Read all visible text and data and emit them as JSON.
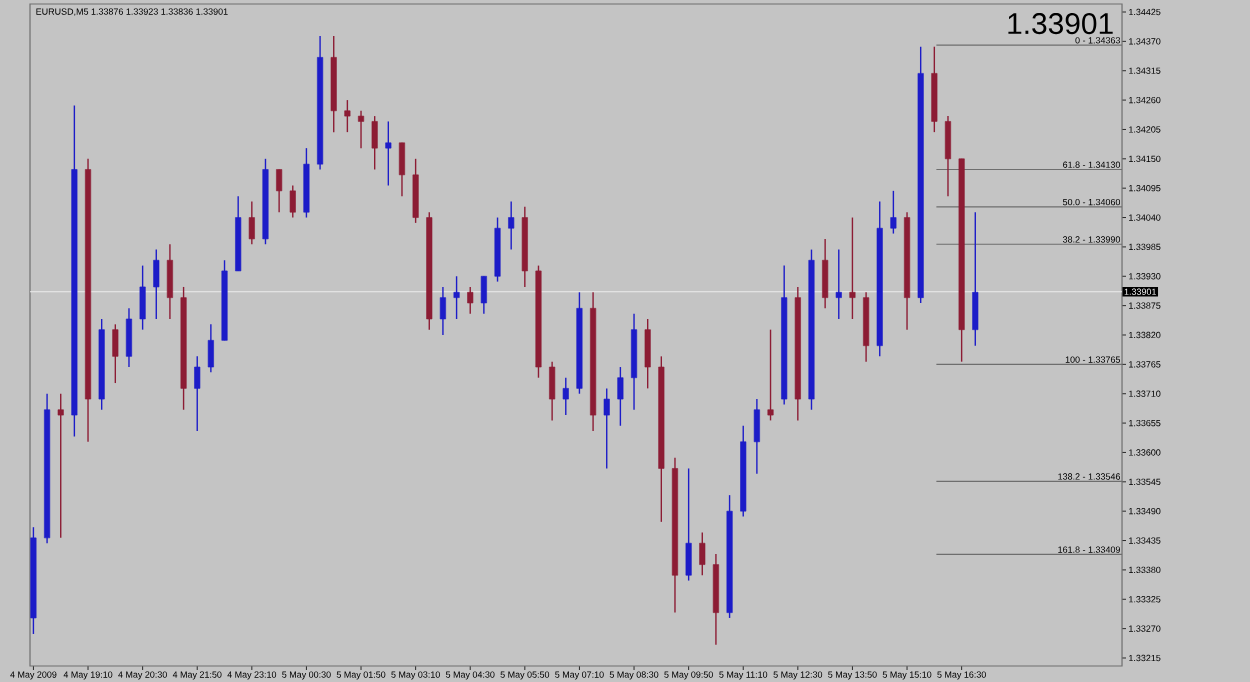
{
  "chart_data": {
    "type": "candlestick",
    "title": "EURUSD,M5 1.33876 1.33923 1.33836 1.33901",
    "x": [
      "2009-05-04T17:50",
      "2009-05-04T18:10",
      "2009-05-04T18:30",
      "2009-05-04T18:50",
      "2009-05-04T19:10",
      "2009-05-04T19:30",
      "2009-05-04T19:50",
      "2009-05-04T20:10",
      "2009-05-04T20:30",
      "2009-05-04T20:50",
      "2009-05-04T21:10",
      "2009-05-04T21:30",
      "2009-05-04T21:50",
      "2009-05-04T22:10",
      "2009-05-04T22:30",
      "2009-05-04T22:50",
      "2009-05-04T23:10",
      "2009-05-04T23:30",
      "2009-05-04T23:50",
      "2009-05-05T00:10",
      "2009-05-05T00:30",
      "2009-05-05T00:50",
      "2009-05-05T01:10",
      "2009-05-05T01:30",
      "2009-05-05T01:50",
      "2009-05-05T02:10",
      "2009-05-05T02:30",
      "2009-05-05T02:50",
      "2009-05-05T03:10",
      "2009-05-05T03:30",
      "2009-05-05T03:50",
      "2009-05-05T04:10",
      "2009-05-05T04:30",
      "2009-05-05T04:50",
      "2009-05-05T05:10",
      "2009-05-05T05:30",
      "2009-05-05T05:50",
      "2009-05-05T06:10",
      "2009-05-05T06:30",
      "2009-05-05T06:50",
      "2009-05-05T07:10",
      "2009-05-05T07:30",
      "2009-05-05T07:50",
      "2009-05-05T08:10",
      "2009-05-05T08:30",
      "2009-05-05T08:50",
      "2009-05-05T09:10",
      "2009-05-05T09:30",
      "2009-05-05T09:50",
      "2009-05-05T10:10",
      "2009-05-05T10:30",
      "2009-05-05T10:50",
      "2009-05-05T11:10",
      "2009-05-05T11:30",
      "2009-05-05T11:50",
      "2009-05-05T12:10",
      "2009-05-05T12:30",
      "2009-05-05T12:50",
      "2009-05-05T13:10",
      "2009-05-05T13:30",
      "2009-05-05T13:50",
      "2009-05-05T14:10",
      "2009-05-05T14:30",
      "2009-05-05T14:50",
      "2009-05-05T15:10",
      "2009-05-05T15:30",
      "2009-05-05T15:50",
      "2009-05-05T16:10",
      "2009-05-05T16:30",
      "2009-05-05T16:50"
    ],
    "ohlc": [
      [
        1.3329,
        1.3346,
        1.3326,
        1.3344
      ],
      [
        1.3344,
        1.3371,
        1.3343,
        1.3368
      ],
      [
        1.3368,
        1.3371,
        1.3344,
        1.3367
      ],
      [
        1.3367,
        1.3425,
        1.3363,
        1.3413
      ],
      [
        1.3413,
        1.3415,
        1.3362,
        1.337
      ],
      [
        1.337,
        1.3385,
        1.3368,
        1.3383
      ],
      [
        1.3383,
        1.3384,
        1.3373,
        1.3378
      ],
      [
        1.3378,
        1.3387,
        1.3376,
        1.3385
      ],
      [
        1.3385,
        1.3395,
        1.3383,
        1.3391
      ],
      [
        1.3391,
        1.3398,
        1.3385,
        1.3396
      ],
      [
        1.3396,
        1.3399,
        1.3385,
        1.3389
      ],
      [
        1.3389,
        1.3391,
        1.3368,
        1.3372
      ],
      [
        1.3372,
        1.3378,
        1.3364,
        1.3376
      ],
      [
        1.3376,
        1.3384,
        1.3375,
        1.3381
      ],
      [
        1.3381,
        1.3396,
        1.3381,
        1.3394
      ],
      [
        1.3394,
        1.3408,
        1.3394,
        1.3404
      ],
      [
        1.3404,
        1.3407,
        1.3399,
        1.34
      ],
      [
        1.34,
        1.3415,
        1.3399,
        1.3413
      ],
      [
        1.3413,
        1.3413,
        1.3405,
        1.3409
      ],
      [
        1.3409,
        1.341,
        1.3404,
        1.3405
      ],
      [
        1.3405,
        1.3417,
        1.3404,
        1.3414
      ],
      [
        1.3414,
        1.3438,
        1.3413,
        1.3434
      ],
      [
        1.3434,
        1.3438,
        1.342,
        1.3424
      ],
      [
        1.3424,
        1.3426,
        1.342,
        1.3423
      ],
      [
        1.3423,
        1.3424,
        1.3417,
        1.3422
      ],
      [
        1.3422,
        1.3423,
        1.3413,
        1.3417
      ],
      [
        1.3417,
        1.3422,
        1.341,
        1.3418
      ],
      [
        1.3418,
        1.3418,
        1.3408,
        1.3412
      ],
      [
        1.3412,
        1.3415,
        1.3403,
        1.3404
      ],
      [
        1.3404,
        1.3405,
        1.3383,
        1.3385
      ],
      [
        1.3385,
        1.3391,
        1.3382,
        1.3389
      ],
      [
        1.3389,
        1.3393,
        1.3385,
        1.339
      ],
      [
        1.339,
        1.3391,
        1.3386,
        1.3388
      ],
      [
        1.3388,
        1.3393,
        1.3386,
        1.3393
      ],
      [
        1.3393,
        1.3404,
        1.3392,
        1.3402
      ],
      [
        1.3402,
        1.3407,
        1.3398,
        1.3404
      ],
      [
        1.3404,
        1.3406,
        1.3391,
        1.3394
      ],
      [
        1.3394,
        1.3395,
        1.3374,
        1.3376
      ],
      [
        1.3376,
        1.3377,
        1.3366,
        1.337
      ],
      [
        1.337,
        1.3374,
        1.3367,
        1.3372
      ],
      [
        1.3372,
        1.339,
        1.3371,
        1.3387
      ],
      [
        1.3387,
        1.339,
        1.3364,
        1.3367
      ],
      [
        1.3367,
        1.3372,
        1.3357,
        1.337
      ],
      [
        1.337,
        1.3376,
        1.3365,
        1.3374
      ],
      [
        1.3374,
        1.3386,
        1.3368,
        1.3383
      ],
      [
        1.3383,
        1.3385,
        1.3372,
        1.3376
      ],
      [
        1.3376,
        1.3378,
        1.3347,
        1.3357
      ],
      [
        1.3357,
        1.3359,
        1.333,
        1.3337
      ],
      [
        1.3337,
        1.3357,
        1.3336,
        1.3343
      ],
      [
        1.3343,
        1.3345,
        1.3337,
        1.3339
      ],
      [
        1.3339,
        1.3341,
        1.3324,
        1.333
      ],
      [
        1.333,
        1.3352,
        1.3329,
        1.3349
      ],
      [
        1.3349,
        1.3365,
        1.3348,
        1.3362
      ],
      [
        1.3362,
        1.337,
        1.3356,
        1.3368
      ],
      [
        1.3368,
        1.3383,
        1.3366,
        1.3367
      ],
      [
        1.337,
        1.3395,
        1.3369,
        1.3389
      ],
      [
        1.3389,
        1.3391,
        1.3366,
        1.337
      ],
      [
        1.337,
        1.3398,
        1.3368,
        1.3396
      ],
      [
        1.3396,
        1.34,
        1.3387,
        1.3389
      ],
      [
        1.3389,
        1.3398,
        1.3385,
        1.339
      ],
      [
        1.339,
        1.3404,
        1.3385,
        1.3389
      ],
      [
        1.3389,
        1.339,
        1.3377,
        1.338
      ],
      [
        1.338,
        1.3407,
        1.3378,
        1.3402
      ],
      [
        1.3402,
        1.3409,
        1.3401,
        1.3404
      ],
      [
        1.3404,
        1.3405,
        1.3383,
        1.3389
      ],
      [
        1.3389,
        1.3436,
        1.3388,
        1.3431
      ],
      [
        1.3431,
        1.3436,
        1.342,
        1.3422
      ],
      [
        1.3422,
        1.3423,
        1.3408,
        1.3415
      ],
      [
        1.3415,
        1.3415,
        1.3377,
        1.3383
      ],
      [
        1.3383,
        1.3405,
        1.338,
        1.339
      ]
    ],
    "colors": [
      "#1c1cc8",
      "#1c1cc8",
      "#8c1c34",
      "#1c1cc8",
      "#8c1c34",
      "#1c1cc8",
      "#8c1c34",
      "#1c1cc8",
      "#1c1cc8",
      "#1c1cc8",
      "#8c1c34",
      "#8c1c34",
      "#1c1cc8",
      "#1c1cc8",
      "#1c1cc8",
      "#1c1cc8",
      "#8c1c34",
      "#1c1cc8",
      "#8c1c34",
      "#8c1c34",
      "#1c1cc8",
      "#1c1cc8",
      "#8c1c34",
      "#8c1c34",
      "#8c1c34",
      "#8c1c34",
      "#1c1cc8",
      "#8c1c34",
      "#8c1c34",
      "#8c1c34",
      "#1c1cc8",
      "#1c1cc8",
      "#8c1c34",
      "#1c1cc8",
      "#1c1cc8",
      "#1c1cc8",
      "#8c1c34",
      "#8c1c34",
      "#8c1c34",
      "#1c1cc8",
      "#1c1cc8",
      "#8c1c34",
      "#1c1cc8",
      "#1c1cc8",
      "#1c1cc8",
      "#8c1c34",
      "#8c1c34",
      "#8c1c34",
      "#1c1cc8",
      "#8c1c34",
      "#8c1c34",
      "#1c1cc8",
      "#1c1cc8",
      "#1c1cc8",
      "#8c1c34",
      "#1c1cc8",
      "#8c1c34",
      "#1c1cc8",
      "#8c1c34",
      "#1c1cc8",
      "#8c1c34",
      "#8c1c34",
      "#1c1cc8",
      "#1c1cc8",
      "#8c1c34",
      "#1c1cc8",
      "#8c1c34",
      "#8c1c34",
      "#8c1c34",
      "#1c1cc8"
    ],
    "xlim": [
      "2009-05-04T17:45",
      "2009-05-05T20:25"
    ],
    "xticks": [
      {
        "value": "2009-05-04T17:50",
        "label": "4 May 2009"
      },
      {
        "value": "2009-05-04T19:10",
        "label": "4 May 19:10"
      },
      {
        "value": "2009-05-04T20:30",
        "label": "4 May 20:30"
      },
      {
        "value": "2009-05-04T21:50",
        "label": "4 May 21:50"
      },
      {
        "value": "2009-05-04T23:10",
        "label": "4 May 23:10"
      },
      {
        "value": "2009-05-05T00:30",
        "label": "5 May 00:30"
      },
      {
        "value": "2009-05-05T01:50",
        "label": "5 May 01:50"
      },
      {
        "value": "2009-05-05T03:10",
        "label": "5 May 03:10"
      },
      {
        "value": "2009-05-05T04:30",
        "label": "5 May 04:30"
      },
      {
        "value": "2009-05-05T05:50",
        "label": "5 May 05:50"
      },
      {
        "value": "2009-05-05T07:10",
        "label": "5 May 07:10"
      },
      {
        "value": "2009-05-05T08:30",
        "label": "5 May 08:30"
      },
      {
        "value": "2009-05-05T09:50",
        "label": "5 May 09:50"
      },
      {
        "value": "2009-05-05T11:10",
        "label": "5 May 11:10"
      },
      {
        "value": "2009-05-05T12:30",
        "label": "5 May 12:30"
      },
      {
        "value": "2009-05-05T13:50",
        "label": "5 May 13:50"
      },
      {
        "value": "2009-05-05T15:10",
        "label": "5 May 15:10"
      },
      {
        "value": "2009-05-05T16:30",
        "label": "5 May 16:30"
      }
    ],
    "ylim": [
      1.332,
      1.3444
    ],
    "yticks": [
      1.34425,
      {
        "value": 1.3437,
        "label": "1.34370"
      },
      1.34315,
      {
        "value": 1.3426,
        "label": "1.34260"
      },
      1.34205,
      {
        "value": 1.3415,
        "label": "1.34150"
      },
      1.34095,
      {
        "value": 1.3404,
        "label": "1.34040"
      },
      1.33985,
      {
        "value": 1.3393,
        "label": "1.33930"
      },
      1.33875,
      {
        "value": 1.3382,
        "label": "1.33820"
      },
      1.33765,
      {
        "value": 1.3371,
        "label": "1.33710"
      },
      1.33655,
      {
        "value": 1.336,
        "label": "1.33600"
      },
      1.33545,
      {
        "value": 1.3349,
        "label": "1.33490"
      },
      1.33435,
      {
        "value": 1.3338,
        "label": "1.33380"
      },
      1.33325,
      {
        "value": 1.3327,
        "label": "1.33270"
      },
      1.33215
    ],
    "ref_lines": [
      {
        "axis": "y",
        "value": 1.33901,
        "label": "1.33901",
        "color": "#ececec"
      },
      {
        "axis": "y",
        "value": 1.34363,
        "color": "#6e6e6e"
      },
      {
        "axis": "y",
        "value": 1.3413,
        "color": "#6e6e6e"
      },
      {
        "axis": "y",
        "value": 1.3406,
        "color": "#6e6e6e"
      },
      {
        "axis": "y",
        "value": 1.3399,
        "color": "#6e6e6e"
      },
      {
        "axis": "y",
        "value": 1.33765,
        "color": "#6e6e6e"
      },
      {
        "axis": "y",
        "value": 1.33546,
        "color": "#6e6e6e"
      },
      {
        "axis": "y",
        "value": 1.33409,
        "color": "#6e6e6e"
      }
    ],
    "annotations": [
      "1.33901",
      {
        "text": "0 - 1.34363",
        "x": "2009-05-05T20:25",
        "y": 1.34363
      },
      {
        "text": "61.8 - 1.34130",
        "x": "2009-05-05T20:25",
        "y": 1.3413
      },
      {
        "text": "50.0 - 1.34060",
        "x": "2009-05-05T20:25",
        "y": 1.3406
      },
      {
        "text": "38.2 - 1.33990",
        "x": "2009-05-05T20:25",
        "y": 1.3399
      },
      {
        "text": "100 - 1.33765",
        "x": "2009-05-05T20:25",
        "y": 1.33765
      },
      {
        "text": "138.2 - 1.33546",
        "x": "2009-05-05T20:25",
        "y": 1.33546
      },
      {
        "text": "161.8 - 1.33409",
        "x": "2009-05-05T20:25",
        "y": 1.33409
      }
    ]
  }
}
